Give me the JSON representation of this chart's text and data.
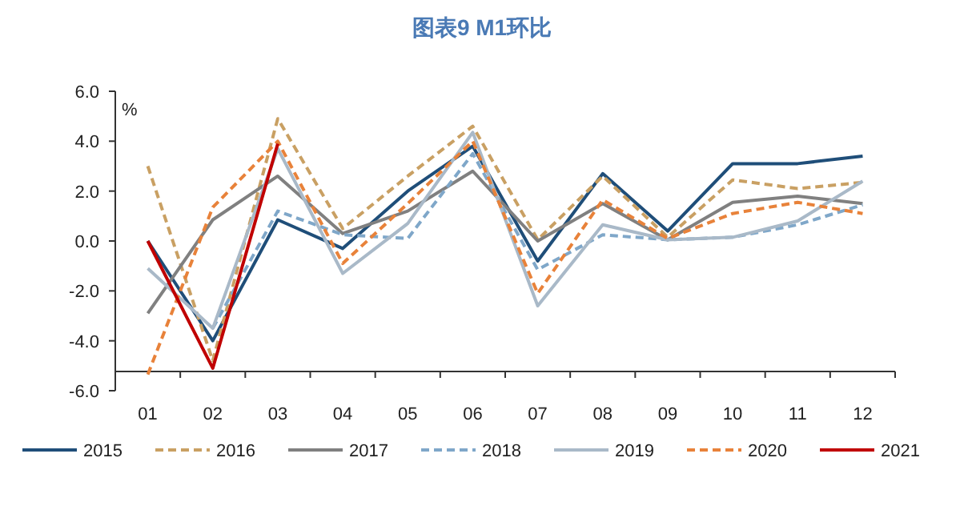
{
  "chart_data": {
    "type": "line",
    "title": "图表9 M1环比",
    "ylabel": "%",
    "categories": [
      "01",
      "02",
      "03",
      "04",
      "05",
      "06",
      "07",
      "08",
      "09",
      "10",
      "11",
      "12"
    ],
    "ylim": [
      -6,
      6
    ],
    "yticks": [
      {
        "value": -6,
        "label": "-6.0"
      },
      {
        "value": -4,
        "label": "-4.0"
      },
      {
        "value": -2,
        "label": "-2.0"
      },
      {
        "value": 0,
        "label": "0.0"
      },
      {
        "value": 2,
        "label": "2.0"
      },
      {
        "value": 4,
        "label": "4.0"
      },
      {
        "value": 6,
        "label": "6.0"
      }
    ],
    "legend": "bottom",
    "grid": false,
    "series": [
      {
        "name": "2015",
        "color": "#1f4e79",
        "line_style": "solid",
        "values": [
          0.0,
          -4.0,
          0.85,
          -0.3,
          2.0,
          3.8,
          -0.8,
          2.7,
          0.4,
          3.1,
          3.1,
          3.4
        ]
      },
      {
        "name": "2016",
        "color": "#c9a063",
        "line_style": "dashed",
        "values": [
          3.0,
          -4.8,
          4.9,
          0.5,
          2.6,
          4.6,
          0.05,
          2.6,
          0.15,
          2.45,
          2.1,
          2.35
        ]
      },
      {
        "name": "2017",
        "color": "#808080",
        "line_style": "solid",
        "values": [
          -2.9,
          0.85,
          2.6,
          0.3,
          1.2,
          2.8,
          0.0,
          1.5,
          0.05,
          1.55,
          1.8,
          1.5
        ]
      },
      {
        "name": "2018",
        "color": "#7fa7c9",
        "line_style": "dashed",
        "values": [
          null,
          -3.5,
          1.2,
          0.25,
          0.1,
          3.5,
          -1.15,
          0.25,
          0.05,
          0.15,
          0.65,
          1.45
        ]
      },
      {
        "name": "2019",
        "color": "#a9b9c8",
        "line_style": "solid",
        "values": [
          -1.1,
          -3.5,
          3.7,
          -1.3,
          0.7,
          4.35,
          -2.6,
          0.65,
          0.05,
          0.15,
          0.8,
          2.4
        ]
      },
      {
        "name": "2020",
        "color": "#e8823a",
        "line_style": "dashed",
        "values": [
          -5.35,
          1.35,
          4.0,
          -0.9,
          1.5,
          4.0,
          -2.1,
          1.65,
          0.1,
          1.1,
          1.55,
          1.1
        ]
      },
      {
        "name": "2021",
        "color": "#c00000",
        "line_style": "solid",
        "values": [
          0.0,
          -5.1,
          3.9,
          null,
          null,
          null,
          null,
          null,
          null,
          null,
          null,
          null
        ]
      }
    ]
  }
}
